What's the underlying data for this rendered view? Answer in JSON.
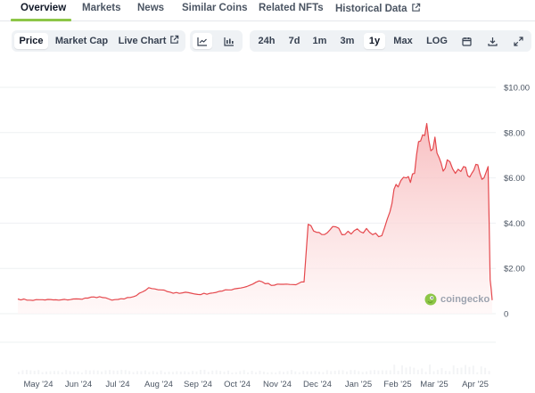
{
  "tabs": [
    {
      "label": "Overview",
      "active": true
    },
    {
      "label": "Markets"
    },
    {
      "label": "News"
    },
    {
      "label": "Similar Coins"
    },
    {
      "label": "Related NFTs"
    },
    {
      "label": "Historical Data",
      "external": true
    }
  ],
  "toolbar": {
    "view_buttons": [
      "Price",
      "Market Cap",
      "Live Chart"
    ],
    "selected_view": "Price",
    "chart_styles": [
      "line-chart-icon",
      "candlestick-icon"
    ],
    "selected_style": "line-chart-icon",
    "ranges": [
      "24h",
      "7d",
      "1m",
      "3m",
      "1y",
      "Max",
      "LOG"
    ],
    "selected_range": "1y",
    "tool_icons": [
      "calendar-icon",
      "download-icon",
      "expand-icon"
    ]
  },
  "brand": {
    "text": "coingecko",
    "color": "#8dc647"
  },
  "colors": {
    "line": "#e5484d",
    "fill_top": "#f6b4b6",
    "fill_bottom": "#fff4f4",
    "accent": "#8dc647"
  },
  "chart_data": {
    "type": "area",
    "title": "",
    "xlabel": "",
    "ylabel": "",
    "ylim": [
      0,
      10
    ],
    "yticks": [
      "0",
      "$2.00",
      "$4.00",
      "$6.00",
      "$8.00",
      "$10.00"
    ],
    "xticks": [
      "May '24",
      "Jun '24",
      "Jul '24",
      "Aug '24",
      "Sep '24",
      "Oct '24",
      "Nov '24",
      "Dec '24",
      "Jan '25",
      "Feb '25",
      "Mar '25",
      "Apr '25"
    ],
    "grid": true,
    "series": [
      {
        "x": [
          0,
          0.3,
          0.6,
          1,
          1.5,
          2,
          2.3,
          2.6,
          2.9,
          3.2,
          3.5,
          3.8,
          4.1,
          4.4,
          4.7,
          5,
          5.3,
          5.6,
          5.9,
          6.2,
          6.5,
          6.8,
          7.0,
          7.1,
          7.3,
          7.5,
          7.7,
          8.0,
          8.3,
          8.6,
          8.9,
          9.1,
          9.2,
          9.3,
          9.5,
          9.6,
          9.7,
          9.8,
          9.9,
          10.0,
          10.1,
          10.2,
          10.3,
          10.4,
          10.5,
          10.7,
          10.9,
          11.0,
          11.1,
          11.2,
          11.3,
          11.4,
          11.5,
          11.55,
          11.6
        ],
        "values": [
          0.65,
          0.6,
          0.62,
          0.6,
          0.65,
          0.75,
          0.6,
          0.65,
          0.8,
          1.15,
          1.05,
          0.9,
          0.95,
          0.85,
          0.9,
          1.0,
          1.1,
          1.2,
          1.45,
          1.25,
          1.3,
          1.28,
          1.4,
          3.95,
          3.6,
          3.5,
          3.85,
          3.5,
          3.75,
          3.6,
          3.45,
          4.5,
          5.5,
          5.6,
          6.0,
          5.8,
          6.2,
          7.6,
          7.9,
          8.4,
          7.2,
          7.8,
          6.9,
          6.3,
          6.8,
          6.2,
          6.5,
          6.1,
          6.2,
          6.6,
          6.2,
          6.0,
          6.5,
          1.5,
          0.6
        ]
      }
    ]
  }
}
